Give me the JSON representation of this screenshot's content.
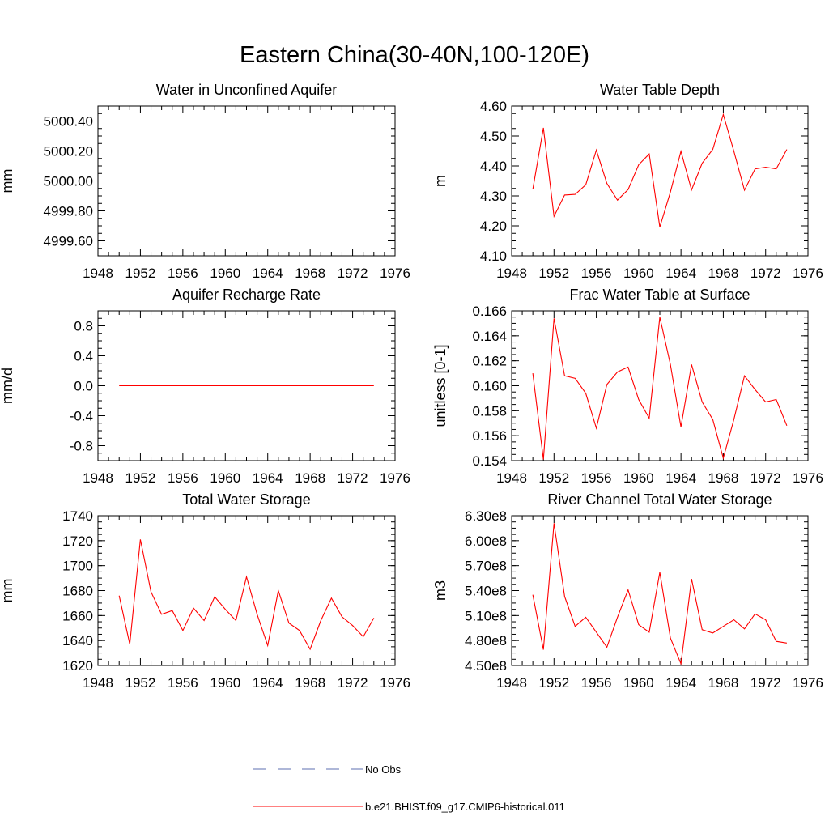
{
  "main_title": "Eastern China(30-40N,100-120E)",
  "legend": [
    {
      "label": "No Obs",
      "color": "#5d6fb0",
      "style": "dashed"
    },
    {
      "label": "b.e21.BHIST.f09_g17.CMIP6-historical.011",
      "color": "#ff0000",
      "style": "solid"
    }
  ],
  "chart_data": [
    {
      "type": "line",
      "title": "Water in Unconfined Aquifer",
      "ylabel": "mm",
      "xlim": [
        1948,
        1976
      ],
      "ylim": [
        4999.5,
        5000.5
      ],
      "xticks": [
        1948,
        1952,
        1956,
        1960,
        1964,
        1968,
        1972,
        1976
      ],
      "yticks": [
        4999.6,
        4999.8,
        5000.0,
        5000.2,
        5000.4
      ],
      "ytick_labels": [
        "4999.60",
        "4999.80",
        "5000.00",
        "5000.20",
        "5000.40"
      ],
      "x": [
        1950,
        1951,
        1952,
        1953,
        1954,
        1955,
        1956,
        1957,
        1958,
        1959,
        1960,
        1961,
        1962,
        1963,
        1964,
        1965,
        1966,
        1967,
        1968,
        1969,
        1970,
        1971,
        1972,
        1973,
        1974
      ],
      "series": [
        {
          "color": "#ff0000",
          "values": [
            5000,
            5000,
            5000,
            5000,
            5000,
            5000,
            5000,
            5000,
            5000,
            5000,
            5000,
            5000,
            5000,
            5000,
            5000,
            5000,
            5000,
            5000,
            5000,
            5000,
            5000,
            5000,
            5000,
            5000,
            5000
          ]
        }
      ]
    },
    {
      "type": "line",
      "title": "Water Table Depth",
      "ylabel": "m",
      "xlim": [
        1948,
        1976
      ],
      "ylim": [
        4.1,
        4.6
      ],
      "xticks": [
        1948,
        1952,
        1956,
        1960,
        1964,
        1968,
        1972,
        1976
      ],
      "yticks": [
        4.1,
        4.2,
        4.3,
        4.4,
        4.5,
        4.6
      ],
      "ytick_labels": [
        "4.10",
        "4.20",
        "4.30",
        "4.40",
        "4.50",
        "4.60"
      ],
      "x": [
        1950,
        1951,
        1952,
        1953,
        1954,
        1955,
        1956,
        1957,
        1958,
        1959,
        1960,
        1961,
        1962,
        1963,
        1964,
        1965,
        1966,
        1967,
        1968,
        1969,
        1970,
        1971,
        1972,
        1973,
        1974
      ],
      "series": [
        {
          "color": "#ff0000",
          "values": [
            4.322,
            4.527,
            4.232,
            4.303,
            4.305,
            4.337,
            4.453,
            4.342,
            4.286,
            4.321,
            4.404,
            4.44,
            4.196,
            4.313,
            4.449,
            4.32,
            4.409,
            4.455,
            4.572,
            4.449,
            4.319,
            4.39,
            4.396,
            4.39,
            4.455
          ]
        }
      ]
    },
    {
      "type": "line",
      "title": "Aquifer Recharge Rate",
      "ylabel": "mm/d",
      "xlim": [
        1948,
        1976
      ],
      "ylim": [
        -1.0,
        1.0
      ],
      "xticks": [
        1948,
        1952,
        1956,
        1960,
        1964,
        1968,
        1972,
        1976
      ],
      "yticks": [
        -0.8,
        -0.4,
        0.0,
        0.4,
        0.8
      ],
      "ytick_labels": [
        "-0.8",
        "-0.4",
        "0.0",
        "0.4",
        "0.8"
      ],
      "x": [
        1950,
        1951,
        1952,
        1953,
        1954,
        1955,
        1956,
        1957,
        1958,
        1959,
        1960,
        1961,
        1962,
        1963,
        1964,
        1965,
        1966,
        1967,
        1968,
        1969,
        1970,
        1971,
        1972,
        1973,
        1974
      ],
      "series": [
        {
          "color": "#ff0000",
          "values": [
            0,
            0,
            0,
            0,
            0,
            0,
            0,
            0,
            0,
            0,
            0,
            0,
            0,
            0,
            0,
            0,
            0,
            0,
            0,
            0,
            0,
            0,
            0,
            0,
            0
          ]
        }
      ]
    },
    {
      "type": "line",
      "title": "Frac Water Table at Surface",
      "ylabel": "unitless [0-1]",
      "xlim": [
        1948,
        1976
      ],
      "ylim": [
        0.154,
        0.166
      ],
      "xticks": [
        1948,
        1952,
        1956,
        1960,
        1964,
        1968,
        1972,
        1976
      ],
      "yticks": [
        0.154,
        0.156,
        0.158,
        0.16,
        0.162,
        0.164,
        0.166
      ],
      "ytick_labels": [
        "0.154",
        "0.156",
        "0.158",
        "0.160",
        "0.162",
        "0.164",
        "0.166"
      ],
      "x": [
        1950,
        1951,
        1952,
        1953,
        1954,
        1955,
        1956,
        1957,
        1958,
        1959,
        1960,
        1961,
        1962,
        1963,
        1964,
        1965,
        1966,
        1967,
        1968,
        1969,
        1970,
        1971,
        1972,
        1973,
        1974
      ],
      "series": [
        {
          "color": "#ff0000",
          "values": [
            0.161,
            0.1541,
            0.1654,
            0.1608,
            0.1606,
            0.1594,
            0.1566,
            0.1601,
            0.1611,
            0.1615,
            0.1589,
            0.1574,
            0.1655,
            0.1617,
            0.1567,
            0.1617,
            0.1587,
            0.1573,
            0.1542,
            0.1573,
            0.1608,
            0.1597,
            0.1587,
            0.1589,
            0.1568
          ]
        }
      ]
    },
    {
      "type": "line",
      "title": "Total Water Storage",
      "ylabel": "mm",
      "xlim": [
        1948,
        1976
      ],
      "ylim": [
        1620,
        1740
      ],
      "xticks": [
        1948,
        1952,
        1956,
        1960,
        1964,
        1968,
        1972,
        1976
      ],
      "yticks": [
        1620,
        1640,
        1660,
        1680,
        1700,
        1720,
        1740
      ],
      "ytick_labels": [
        "1620",
        "1640",
        "1660",
        "1680",
        "1700",
        "1720",
        "1740"
      ],
      "x": [
        1950,
        1951,
        1952,
        1953,
        1954,
        1955,
        1956,
        1957,
        1958,
        1959,
        1960,
        1961,
        1962,
        1963,
        1964,
        1965,
        1966,
        1967,
        1968,
        1969,
        1970,
        1971,
        1972,
        1973,
        1974
      ],
      "series": [
        {
          "color": "#ff0000",
          "values": [
            1676,
            1637,
            1721,
            1679,
            1661,
            1664,
            1648,
            1666,
            1656,
            1675,
            1665,
            1656,
            1691,
            1661,
            1636,
            1680,
            1654,
            1648,
            1633,
            1656,
            1674,
            1659,
            1652,
            1643,
            1658
          ]
        }
      ]
    },
    {
      "type": "line",
      "title": "River Channel Total Water Storage",
      "ylabel": "m3",
      "xlim": [
        1948,
        1976
      ],
      "ylim": [
        450000000,
        630000000
      ],
      "xticks": [
        1948,
        1952,
        1956,
        1960,
        1964,
        1968,
        1972,
        1976
      ],
      "yticks": [
        450000000,
        480000000,
        510000000,
        540000000,
        570000000,
        600000000,
        630000000
      ],
      "ytick_labels": [
        "4.50e8",
        "4.80e8",
        "5.10e8",
        "5.40e8",
        "5.70e8",
        "6.00e8",
        "6.30e8"
      ],
      "x": [
        1950,
        1951,
        1952,
        1953,
        1954,
        1955,
        1956,
        1957,
        1958,
        1959,
        1960,
        1961,
        1962,
        1963,
        1964,
        1965,
        1966,
        1967,
        1968,
        1969,
        1970,
        1971,
        1972,
        1973,
        1974
      ],
      "series": [
        {
          "color": "#ff0000",
          "values": [
            535000000,
            469000000,
            621000000,
            533000000,
            497000000,
            508000000,
            490000000,
            472000000,
            508000000,
            541000000,
            499000000,
            490000000,
            562000000,
            483000000,
            452000000,
            554000000,
            493000000,
            489000000,
            497000000,
            505000000,
            494000000,
            512000000,
            505000000,
            479000000,
            477000000
          ]
        }
      ]
    }
  ]
}
